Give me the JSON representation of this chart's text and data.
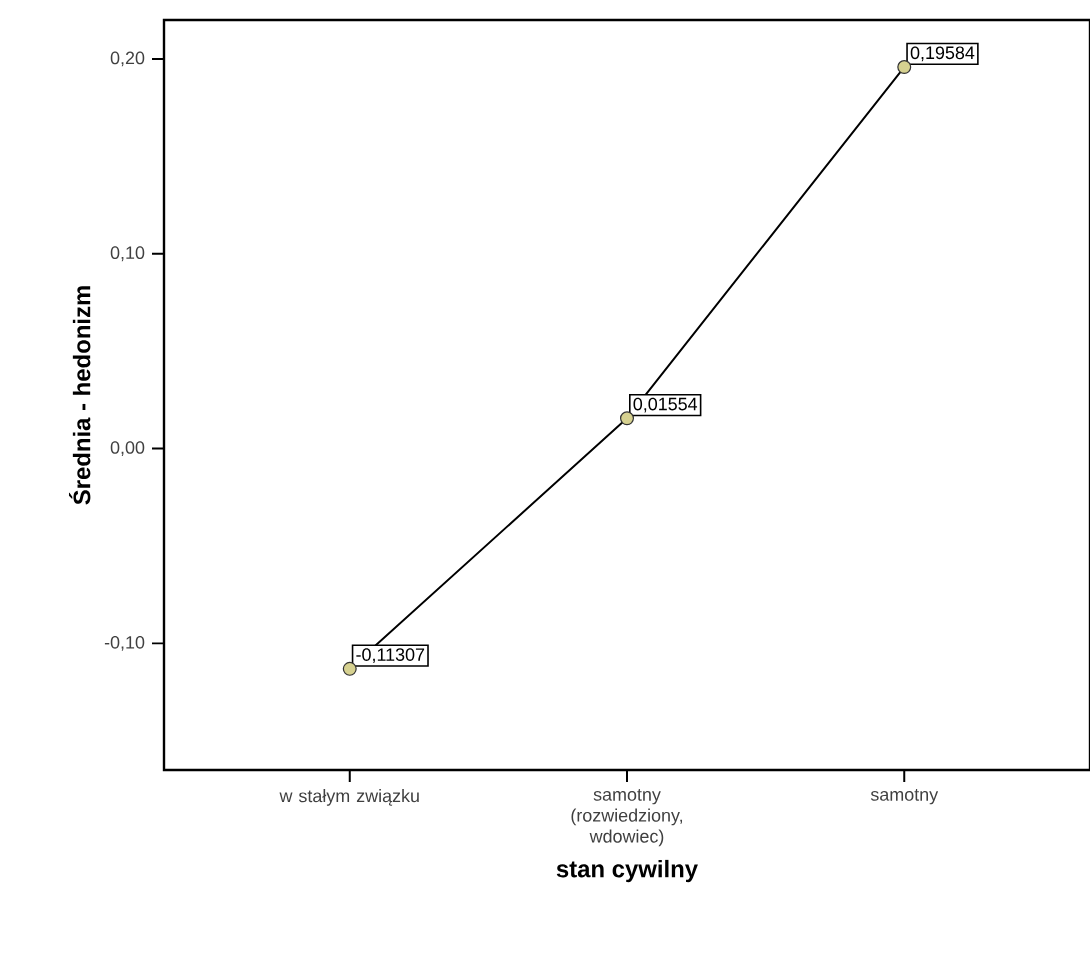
{
  "chart_data": {
    "type": "line",
    "xlabel": "stan cywilny",
    "ylabel": "Średnia - hedonizm",
    "categories": [
      "w stałym związku",
      "samotny (rozwiedziony, wdowiec)",
      "samotny"
    ],
    "series": [
      {
        "color": "#d6d190",
        "values": [
          -0.11307,
          0.01554,
          0.19584
        ],
        "value_labels": [
          "-0,11307",
          "0,01554",
          "0,19584"
        ]
      }
    ],
    "ylim": [
      -0.165,
      0.22
    ],
    "yticks": [
      {
        "value": -0.1,
        "label": "-0,10"
      },
      {
        "value": 0.0,
        "label": "0,00"
      },
      {
        "value": 0.1,
        "label": "0,10"
      },
      {
        "value": 0.2,
        "label": "0,20"
      }
    ],
    "marker": "circle",
    "line_style": "solid",
    "grid": false
  }
}
